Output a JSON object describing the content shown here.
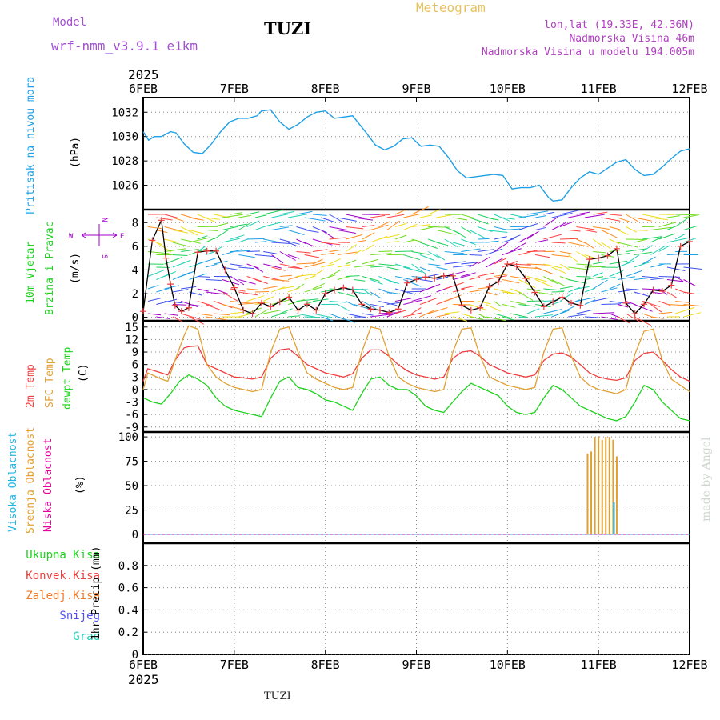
{
  "header": {
    "model_label": "Model",
    "model_name": "wrf-nmm_v3.9.1 e1km",
    "station": "TUZI",
    "product": "Meteogram",
    "lonlat": "lon,lat (19.33E, 42.36N)",
    "elevation": "Nadmorska Visina 46m",
    "model_elevation": "Nadmorska Visina u modelu 194.005m",
    "year_top": "2025",
    "year_bottom": "2025",
    "footer_station": "TUZI",
    "credit": "made by Angel"
  },
  "colors": {
    "pressure": "#1ea0e6",
    "temp2m": "#f03c3c",
    "sfc": "#e1a032",
    "dewpt": "#1ed21e",
    "high_cloud": "#1eb4e6",
    "mid_cloud": "#e1a032",
    "low_cloud": "#e6009b",
    "total_precip": "#1ed21e",
    "conv_precip": "#f03c3c",
    "frz_precip": "#f07828",
    "snow": "#5050f0",
    "hail": "#1ed2b4",
    "wind_speed": "#000000",
    "wind_marker": "#f03c3c",
    "wind_legend": "#a000c8"
  },
  "chart_data": [
    {
      "type": "line",
      "panel": "pressure",
      "ylabel": [
        "Pritisak na nivou mora",
        "(hPa)"
      ],
      "x_ticks": [
        "6FEB",
        "7FEB",
        "8FEB",
        "9FEB",
        "10FEB",
        "11FEB",
        "12FEB"
      ],
      "ylim": [
        1024,
        1033.2
      ],
      "yticks": [
        1026,
        1028,
        1030,
        1032
      ],
      "grid": true,
      "series": [
        {
          "x": [
            0,
            0.06,
            0.12,
            0.2,
            0.3,
            0.36,
            0.45,
            0.55,
            0.65,
            0.75,
            0.85,
            0.95,
            1.05,
            1.15,
            1.25,
            1.3,
            1.4,
            1.5,
            1.6,
            1.7,
            1.8,
            1.9,
            2.0,
            2.1,
            2.2,
            2.3,
            2.45,
            2.55,
            2.65,
            2.75,
            2.85,
            2.95,
            3.05,
            3.15,
            3.25,
            3.35,
            3.45,
            3.55,
            3.65,
            3.75,
            3.85,
            3.95,
            4.05,
            4.15,
            4.25,
            4.35,
            4.45,
            4.5,
            4.6,
            4.7,
            4.8,
            4.9,
            5.0,
            5.1,
            5.2,
            5.3,
            5.4,
            5.5,
            5.6,
            5.7,
            5.8,
            5.9,
            6.0
          ],
          "values": [
            1030.4,
            1029.7,
            1030.0,
            1030.0,
            1030.4,
            1030.3,
            1029.4,
            1028.7,
            1028.6,
            1029.4,
            1030.4,
            1031.2,
            1031.5,
            1031.5,
            1031.7,
            1032.1,
            1032.2,
            1031.2,
            1030.6,
            1031.0,
            1031.6,
            1032.0,
            1032.1,
            1031.5,
            1031.6,
            1031.7,
            1030.3,
            1029.3,
            1028.9,
            1029.2,
            1029.8,
            1029.9,
            1029.2,
            1029.3,
            1029.2,
            1028.3,
            1027.2,
            1026.6,
            1026.7,
            1026.8,
            1026.9,
            1026.8,
            1025.7,
            1025.8,
            1025.8,
            1026.0,
            1025.0,
            1024.7,
            1024.8,
            1025.8,
            1026.6,
            1027.1,
            1026.9,
            1027.4,
            1027.9,
            1028.1,
            1027.3,
            1026.8,
            1026.9,
            1027.5,
            1028.2,
            1028.8,
            1029.0
          ]
        }
      ]
    },
    {
      "type": "line",
      "panel": "wind",
      "ylabel": [
        "10m Vjetar",
        "Brzina i Pravac",
        "(m/s)"
      ],
      "wind_rose": {
        "n": "N",
        "s": "S",
        "w": "W",
        "e": "E"
      },
      "ylim": [
        -0.3,
        9.1
      ],
      "yticks": [
        0,
        2,
        4,
        6,
        8
      ],
      "grid": true,
      "series": [
        {
          "name": "speed",
          "x": [
            0,
            0.1,
            0.2,
            0.25,
            0.3,
            0.35,
            0.42,
            0.5,
            0.6,
            0.7,
            0.8,
            0.9,
            1.0,
            1.1,
            1.2,
            1.3,
            1.4,
            1.5,
            1.6,
            1.7,
            1.8,
            1.9,
            2.0,
            2.1,
            2.2,
            2.3,
            2.4,
            2.5,
            2.6,
            2.7,
            2.8,
            2.9,
            3.0,
            3.1,
            3.2,
            3.3,
            3.4,
            3.5,
            3.6,
            3.7,
            3.8,
            3.9,
            4.0,
            4.1,
            4.2,
            4.3,
            4.4,
            4.5,
            4.6,
            4.7,
            4.8,
            4.9,
            5.0,
            5.1,
            5.2,
            5.3,
            5.4,
            5.5,
            5.6,
            5.7,
            5.8,
            5.9,
            6.0
          ],
          "values": [
            0.5,
            6.5,
            8.2,
            5.0,
            2.8,
            1.0,
            0.5,
            0.8,
            5.5,
            5.6,
            5.6,
            4.0,
            2.5,
            0.6,
            0.3,
            1.2,
            0.9,
            1.3,
            1.7,
            0.6,
            1.1,
            0.6,
            2.0,
            2.3,
            2.5,
            2.3,
            1.1,
            0.7,
            0.6,
            0.4,
            0.7,
            2.9,
            3.2,
            3.4,
            3.3,
            3.5,
            3.5,
            1.0,
            0.6,
            0.8,
            2.6,
            3.0,
            4.5,
            4.3,
            3.3,
            2.1,
            0.9,
            1.3,
            1.7,
            1.2,
            1.0,
            4.9,
            5.0,
            5.2,
            5.8,
            1.2,
            0.3,
            1.1,
            2.3,
            2.2,
            2.7,
            6.0,
            6.4
          ]
        }
      ]
    },
    {
      "type": "line",
      "panel": "temperature",
      "ylabel": [
        "2m Temp",
        "SFC Temp",
        "dewpt Temp",
        "(C)"
      ],
      "ylim": [
        -10.2,
        16.5
      ],
      "yticks": [
        -9,
        -6,
        -3,
        0,
        3,
        6,
        9,
        12,
        15
      ],
      "grid": true,
      "series": [
        {
          "name": "2m Temp",
          "x": [
            0,
            0.05,
            0.2,
            0.27,
            0.35,
            0.45,
            0.5,
            0.6,
            0.7,
            0.8,
            0.9,
            1.0,
            1.1,
            1.2,
            1.3,
            1.4,
            1.5,
            1.6,
            1.7,
            1.8,
            1.9,
            2.0,
            2.1,
            2.2,
            2.3,
            2.4,
            2.5,
            2.6,
            2.7,
            2.8,
            2.9,
            3.0,
            3.1,
            3.2,
            3.3,
            3.4,
            3.5,
            3.6,
            3.7,
            3.8,
            3.9,
            4.0,
            4.1,
            4.2,
            4.3,
            4.4,
            4.5,
            4.6,
            4.7,
            4.8,
            4.9,
            5.0,
            5.1,
            5.2,
            5.3,
            5.4,
            5.5,
            5.6,
            5.7,
            5.8,
            5.9,
            6.0
          ],
          "values": [
            2.0,
            5.0,
            4.0,
            3.5,
            7.0,
            10.0,
            10.3,
            10.5,
            6.0,
            5.0,
            4.0,
            3.0,
            2.8,
            2.5,
            3.0,
            7.5,
            9.5,
            9.8,
            8.0,
            6.0,
            5.0,
            4.0,
            3.5,
            3.0,
            3.8,
            7.5,
            9.5,
            9.5,
            8.0,
            6.0,
            4.5,
            3.5,
            3.0,
            2.5,
            3.0,
            7.5,
            9.0,
            9.3,
            8.0,
            6.0,
            5.0,
            4.0,
            3.5,
            3.0,
            3.5,
            7.0,
            8.5,
            8.8,
            7.8,
            6.0,
            4.0,
            3.0,
            2.5,
            2.2,
            2.8,
            7.0,
            8.7,
            9.0,
            7.0,
            4.8,
            3.0,
            2.0
          ]
        },
        {
          "name": "SFC Temp",
          "x": [
            0,
            0.05,
            0.2,
            0.27,
            0.35,
            0.45,
            0.5,
            0.6,
            0.7,
            0.8,
            0.9,
            1.0,
            1.1,
            1.2,
            1.3,
            1.4,
            1.5,
            1.6,
            1.7,
            1.8,
            1.9,
            2.0,
            2.1,
            2.2,
            2.3,
            2.4,
            2.5,
            2.6,
            2.7,
            2.8,
            2.9,
            3.0,
            3.1,
            3.2,
            3.3,
            3.4,
            3.5,
            3.6,
            3.7,
            3.8,
            3.9,
            4.0,
            4.1,
            4.2,
            4.3,
            4.4,
            4.5,
            4.6,
            4.7,
            4.8,
            4.9,
            5.0,
            5.1,
            5.2,
            5.3,
            5.4,
            5.5,
            5.6,
            5.7,
            5.8,
            5.9,
            6.0
          ],
          "values": [
            0.0,
            4.0,
            2.5,
            2.0,
            7.0,
            13.0,
            15.3,
            14.5,
            6.0,
            3.0,
            1.5,
            0.5,
            0.0,
            -0.5,
            0.0,
            9.0,
            14.5,
            15.0,
            9.0,
            4.0,
            2.5,
            1.5,
            0.5,
            0.0,
            0.5,
            9.0,
            15.0,
            14.5,
            8.0,
            3.0,
            1.5,
            0.5,
            0.0,
            -0.5,
            0.0,
            9.0,
            14.5,
            14.8,
            8.0,
            3.0,
            2.0,
            1.0,
            0.5,
            0.0,
            0.5,
            9.0,
            14.5,
            14.8,
            8.0,
            3.0,
            1.0,
            0.0,
            -0.5,
            -1.0,
            0.0,
            8.5,
            14.0,
            14.5,
            7.0,
            2.5,
            1.0,
            -0.5
          ]
        },
        {
          "name": "dewpt Temp",
          "x": [
            0,
            0.1,
            0.2,
            0.3,
            0.4,
            0.5,
            0.6,
            0.7,
            0.8,
            0.9,
            1.0,
            1.1,
            1.2,
            1.3,
            1.4,
            1.5,
            1.6,
            1.7,
            1.8,
            1.9,
            2.0,
            2.1,
            2.2,
            2.3,
            2.4,
            2.5,
            2.6,
            2.7,
            2.8,
            2.9,
            3.0,
            3.1,
            3.2,
            3.3,
            3.4,
            3.5,
            3.6,
            3.7,
            3.8,
            3.9,
            4.0,
            4.1,
            4.2,
            4.3,
            4.4,
            4.5,
            4.6,
            4.7,
            4.8,
            4.9,
            5.0,
            5.1,
            5.2,
            5.3,
            5.4,
            5.5,
            5.6,
            5.7,
            5.8,
            5.9,
            6.0
          ],
          "values": [
            -2.0,
            -3.0,
            -3.5,
            -1.0,
            2.0,
            3.5,
            2.5,
            1.0,
            -2.0,
            -4.0,
            -5.0,
            -5.5,
            -6.0,
            -6.5,
            -2.0,
            2.0,
            3.0,
            0.5,
            0.0,
            -1.0,
            -2.5,
            -3.0,
            -4.0,
            -5.0,
            -1.0,
            2.5,
            3.0,
            1.0,
            0.0,
            0.0,
            -1.5,
            -4.0,
            -5.0,
            -5.5,
            -3.0,
            -0.5,
            1.5,
            0.5,
            -0.5,
            -1.5,
            -4.0,
            -5.5,
            -6.0,
            -5.5,
            -2.0,
            1.0,
            0.0,
            -2.0,
            -4.0,
            -5.0,
            -6.0,
            -7.0,
            -7.5,
            -6.5,
            -3.0,
            1.0,
            0.0,
            -3.0,
            -5.0,
            -7.0,
            -7.5
          ]
        }
      ]
    },
    {
      "type": "bar",
      "panel": "cloud",
      "ylabel": [
        "Visoka Oblacnost",
        "Srednja Oblacnost",
        "Niska Oblacnost",
        "(%)"
      ],
      "ylim": [
        -9,
        105
      ],
      "yticks": [
        0,
        25,
        50,
        75,
        100
      ],
      "grid": true,
      "series": [
        {
          "name": "Srednja Oblacnost",
          "x": [
            4.88,
            4.92,
            4.96,
            5.0,
            5.04,
            5.08,
            5.12,
            5.16,
            5.2
          ],
          "values": [
            83,
            85,
            100,
            100,
            97,
            100,
            100,
            97,
            80
          ]
        },
        {
          "name": "Visoka Oblacnost",
          "x": [
            5.17
          ],
          "values": [
            33
          ]
        }
      ]
    },
    {
      "type": "bar",
      "panel": "precip",
      "ylabel": [
        "1hr Precip (mm)"
      ],
      "legend": [
        "Ukupna Kisa",
        "Konvek.Kisa",
        "Zaledj.Kisa",
        "Snijeg",
        "Grad"
      ],
      "ylim": [
        0,
        1.0
      ],
      "yticks": [
        0,
        0.2,
        0.4,
        0.6,
        0.8
      ],
      "grid": true,
      "series": [
        {
          "name": "Ukupna Kisa",
          "x": [],
          "values": []
        }
      ]
    }
  ]
}
